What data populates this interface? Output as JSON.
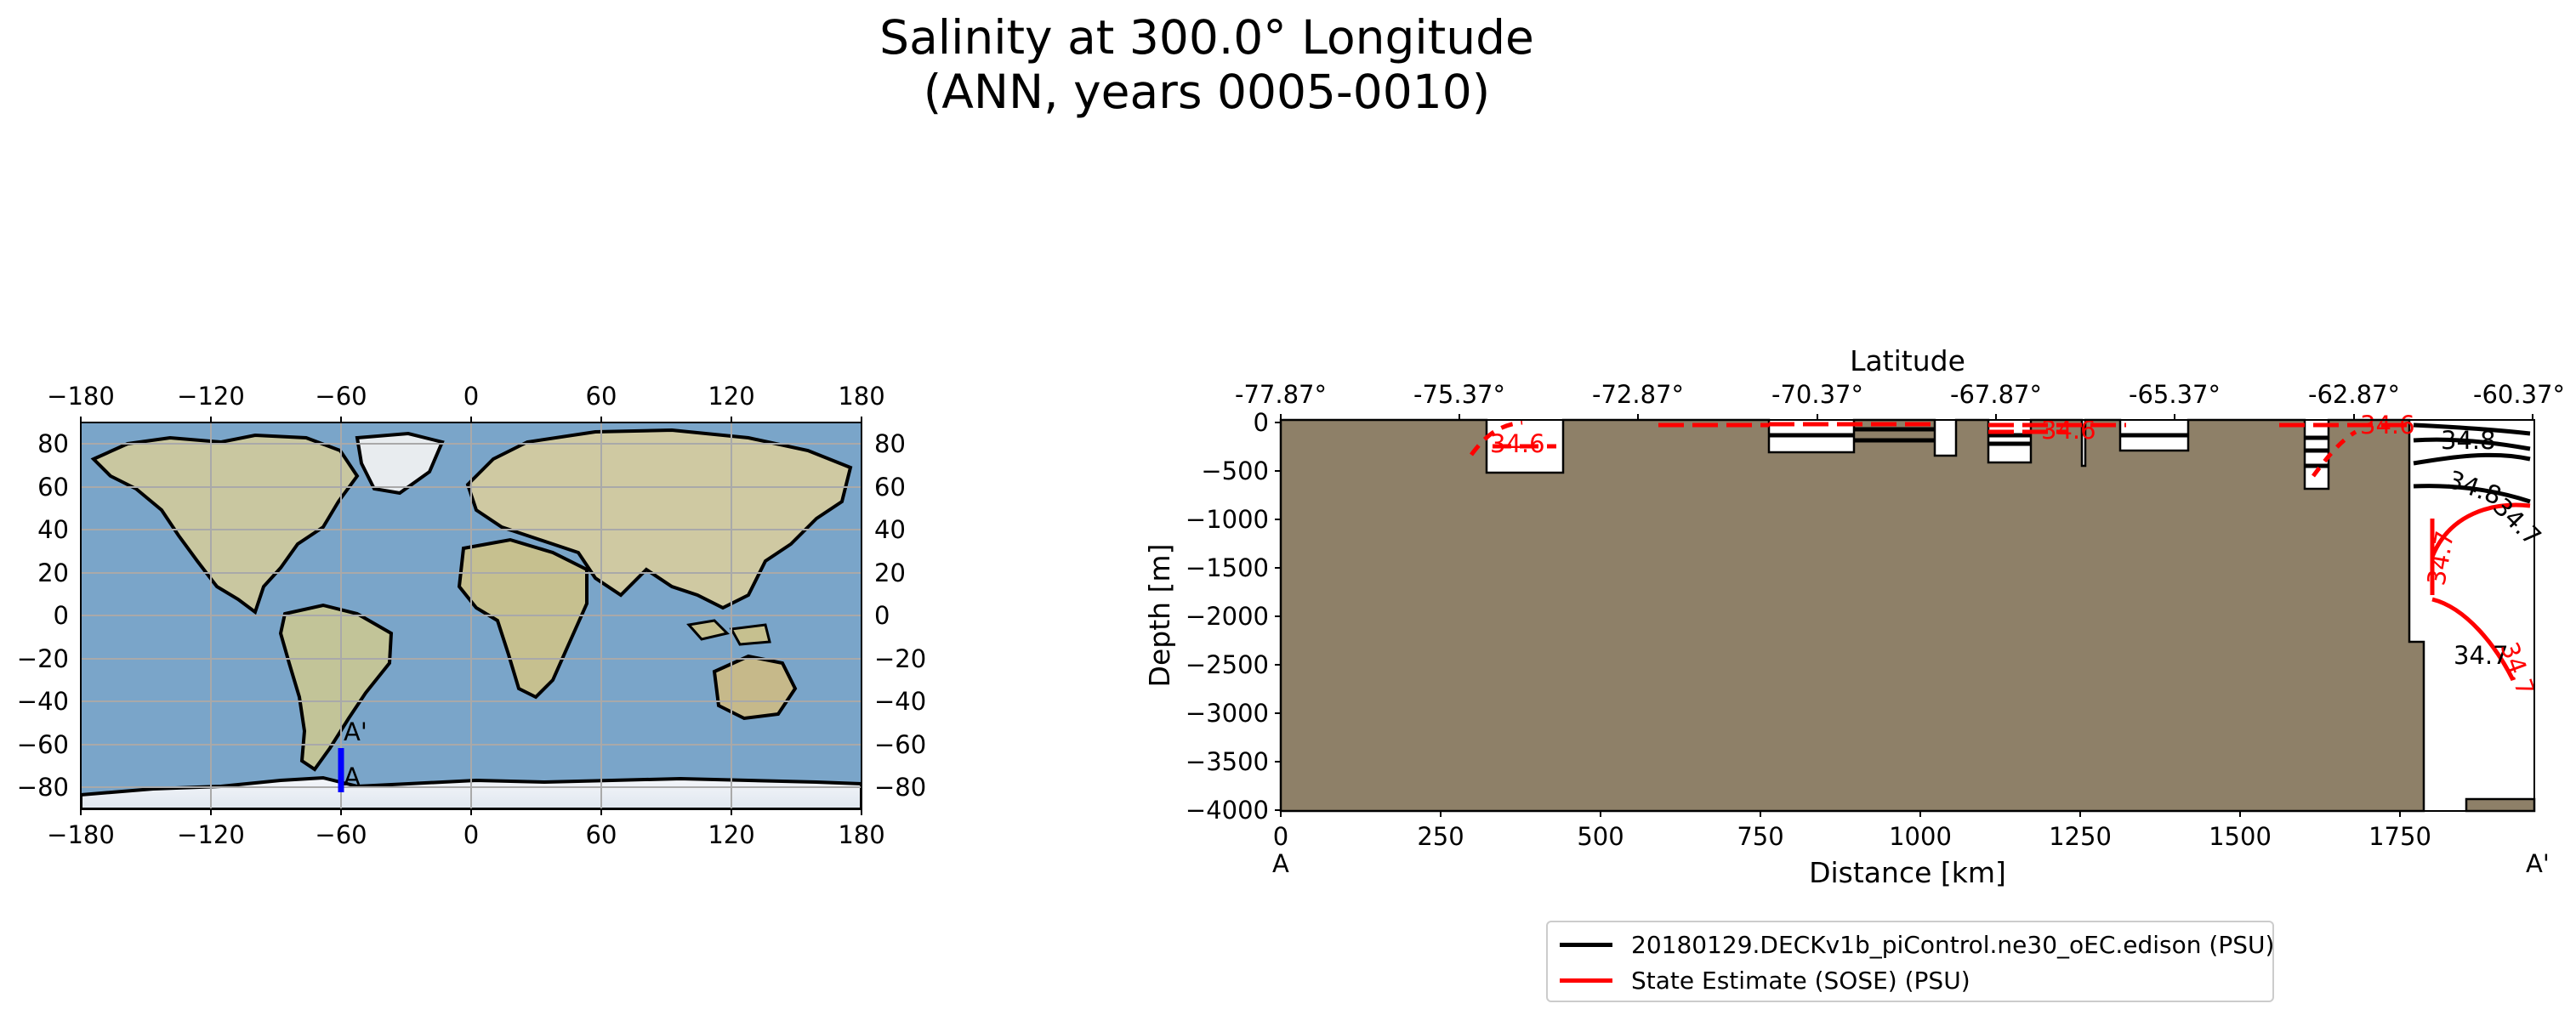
{
  "title": {
    "line1": "Salinity at 300.0° Longitude",
    "line2": "(ANN, years 0005-0010)"
  },
  "chart_data": [
    {
      "type": "map",
      "name": "transect location map",
      "projection": "PlateCarree",
      "x_ticks": [
        "−180",
        "−120",
        "−60",
        "0",
        "60",
        "120",
        "180"
      ],
      "y_ticks": [
        "80",
        "60",
        "40",
        "20",
        "0",
        "−20",
        "−40",
        "−60",
        "−80"
      ],
      "xlim": [
        -180,
        180
      ],
      "ylim": [
        -90,
        90
      ],
      "transect": {
        "longitude": -60,
        "lat_start": -77.87,
        "lat_end": -60.37,
        "color": "#0000ff"
      },
      "endpoint_labels": {
        "start": "A",
        "end": "A'"
      }
    },
    {
      "type": "contour",
      "name": "salinity depth section",
      "xlabel": "Distance [km]",
      "ylabel": "Depth [m]",
      "top_axis_label": "Latitude",
      "xlim": [
        0,
        1950
      ],
      "ylim": [
        -4000,
        0
      ],
      "x_ticks": [
        "0",
        "250",
        "500",
        "750",
        "1000",
        "1250",
        "1500",
        "1750"
      ],
      "y_ticks": [
        "0",
        "−500",
        "−1000",
        "−1500",
        "−2000",
        "−2500",
        "−3000",
        "−3500",
        "−4000"
      ],
      "lat_ticks": [
        "-77.87°",
        "-75.37°",
        "-72.87°",
        "-70.37°",
        "-67.87°",
        "-65.37°",
        "-62.87°",
        "-60.37°"
      ],
      "endpoint_labels": {
        "start": "A",
        "end": "A'"
      },
      "land_color": "#8e8068",
      "contour_labels": [
        {
          "text": "34.7",
          "series": "model",
          "distance_km": 1840,
          "depth_m": -2400
        },
        {
          "text": "34.8",
          "series": "model",
          "distance_km": 1830,
          "depth_m": -500
        },
        {
          "text": "34.7",
          "series": "model",
          "distance_km": 1890,
          "depth_m": -900
        },
        {
          "text": "34.8",
          "series": "model",
          "distance_km": 1820,
          "depth_m": -280
        },
        {
          "text": "34.7",
          "series": "SOSE",
          "distance_km": 1790,
          "depth_m": -1600
        },
        {
          "text": "34.7",
          "series": "SOSE",
          "distance_km": 1900,
          "depth_m": -2600
        },
        {
          "text": "34.6",
          "series": "SOSE",
          "distance_km": 360,
          "depth_m": -220
        },
        {
          "text": "34.6",
          "series": "SOSE",
          "distance_km": 1170,
          "depth_m": -70
        },
        {
          "text": "34.6",
          "series": "SOSE",
          "distance_km": 1680,
          "depth_m": -20
        }
      ],
      "series": [
        {
          "name": "20180129.DECKv1b_piControl.ne30_oEC.edison (PSU)",
          "color": "#000000"
        },
        {
          "name": "State Estimate (SOSE) (PSU)",
          "color": "#ff0000"
        }
      ]
    }
  ]
}
